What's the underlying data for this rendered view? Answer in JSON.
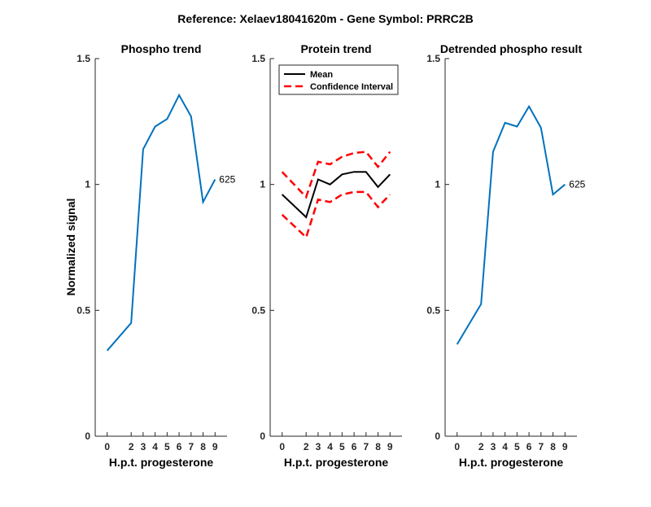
{
  "figure": {
    "suptitle": "Reference:  Xelaev18041620m - Gene Symbol:  PRRC2B",
    "ylabel": "Normalized signal"
  },
  "chart_data": [
    {
      "type": "line",
      "title": "Phospho trend",
      "xlabel": "H.p.t. progesterone",
      "ylabel": "Normalized signal",
      "categories": [
        "0",
        "2",
        "3",
        "4",
        "5",
        "6",
        "7",
        "8",
        "9"
      ],
      "ylim": [
        0,
        1.5
      ],
      "yticks": [
        "0",
        "0.5",
        "1",
        "1.5"
      ],
      "series": [
        {
          "values": [
            0.34,
            0.45,
            1.14,
            1.23,
            1.26,
            1.355,
            1.27,
            0.93,
            1.02
          ],
          "color": "#0072BD",
          "dash": "solid",
          "end_label": "625"
        }
      ]
    },
    {
      "type": "line",
      "title": "Protein trend",
      "xlabel": "H.p.t. progesterone",
      "categories": [
        "0",
        "2",
        "3",
        "4",
        "5",
        "6",
        "7",
        "8",
        "9"
      ],
      "ylim": [
        0,
        1.5
      ],
      "yticks": [
        "0",
        "0.5",
        "1",
        "1.5"
      ],
      "legend_position": "top-left",
      "series": [
        {
          "name": "Mean",
          "values": [
            0.96,
            0.87,
            1.02,
            1.0,
            1.04,
            1.05,
            1.05,
            0.99,
            1.04
          ],
          "color": "#000000",
          "dash": "solid"
        },
        {
          "name": "Confidence Interval",
          "values": [
            1.05,
            0.95,
            1.09,
            1.08,
            1.11,
            1.125,
            1.13,
            1.07,
            1.13
          ],
          "color": "#FF0000",
          "dash": "dashed"
        },
        {
          "values": [
            0.88,
            0.79,
            0.94,
            0.93,
            0.96,
            0.97,
            0.97,
            0.91,
            0.96
          ],
          "color": "#FF0000",
          "dash": "dashed"
        }
      ]
    },
    {
      "type": "line",
      "title": "Detrended phospho result",
      "xlabel": "H.p.t. progesterone",
      "categories": [
        "0",
        "2",
        "3",
        "4",
        "5",
        "6",
        "7",
        "8",
        "9"
      ],
      "ylim": [
        0,
        1.5
      ],
      "yticks": [
        "0",
        "0.5",
        "1",
        "1.5"
      ],
      "series": [
        {
          "values": [
            0.365,
            0.525,
            1.13,
            1.245,
            1.23,
            1.31,
            1.225,
            0.96,
            1.0
          ],
          "color": "#0072BD",
          "dash": "solid",
          "end_label": "625"
        }
      ]
    }
  ]
}
